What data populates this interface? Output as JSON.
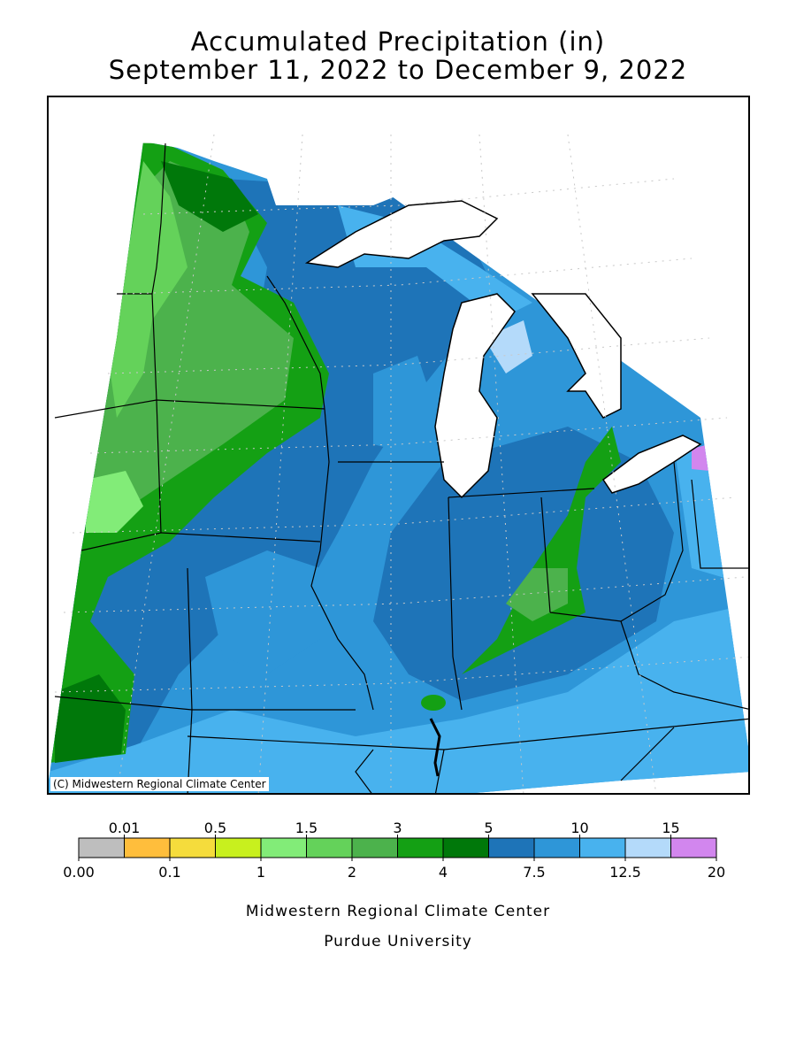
{
  "title": {
    "line1": "Accumulated Precipitation (in)",
    "line2": "September 11, 2022 to December 9, 2022"
  },
  "copyright": "(C) Midwestern Regional Climate Center",
  "legend": {
    "top_labels": [
      "0.01",
      "0.5",
      "1.5",
      "3",
      "5",
      "10",
      "15"
    ],
    "bottom_labels": [
      "0.00",
      "0.1",
      "1",
      "2",
      "4",
      "7.5",
      "12.5",
      "20"
    ],
    "colors": [
      "#bebebe",
      "#ffbe3c",
      "#f5dc3c",
      "#c8f01e",
      "#82ec78",
      "#64d25a",
      "#4cb24c",
      "#14a014",
      "#00780a",
      "#1e74b8",
      "#2e96d8",
      "#48b2ee",
      "#b4dafa",
      "#d286ee"
    ]
  },
  "credits": {
    "line1": "Midwestern Regional Climate Center",
    "line2": "Purdue University"
  }
}
